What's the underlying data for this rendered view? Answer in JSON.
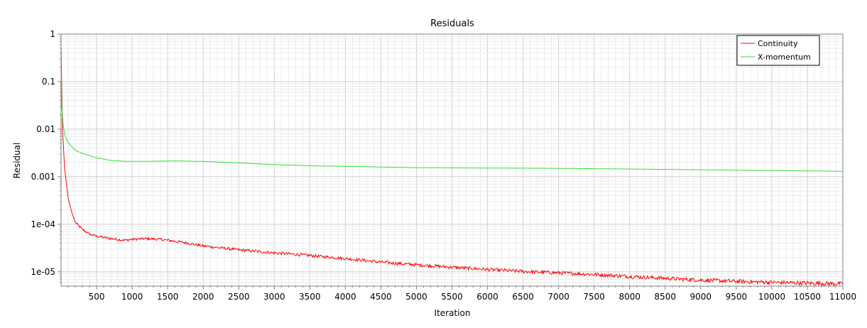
{
  "chart_data": {
    "type": "line",
    "title": "Residuals",
    "xlabel": "Iteration",
    "ylabel": "Residual",
    "xlim": [
      0,
      11000
    ],
    "ylim": [
      5e-06,
      1
    ],
    "yscale": "log",
    "grid": true,
    "legend_position": "top-right",
    "x_ticks": [
      500,
      1000,
      1500,
      2000,
      2500,
      3000,
      3500,
      4000,
      4500,
      5000,
      5500,
      6000,
      6500,
      7000,
      7500,
      8000,
      8500,
      9000,
      9500,
      10000,
      10500,
      11000
    ],
    "y_ticks": [
      {
        "value": 1,
        "label": "1"
      },
      {
        "value": 0.1,
        "label": "0.1"
      },
      {
        "value": 0.01,
        "label": "0.01"
      },
      {
        "value": 0.001,
        "label": "0.001"
      },
      {
        "value": 0.0001,
        "label": "1e-04"
      },
      {
        "value": 1e-05,
        "label": "1e-05"
      }
    ],
    "series": [
      {
        "name": "Continuity",
        "color": "#ff0000",
        "x": [
          1,
          20,
          50,
          100,
          150,
          200,
          300,
          400,
          500,
          700,
          900,
          1000,
          1200,
          1400,
          1500,
          1700,
          2000,
          2500,
          3000,
          3500,
          4000,
          4500,
          5000,
          5500,
          6000,
          6500,
          7000,
          7500,
          8000,
          8500,
          9000,
          9500,
          10000,
          10500,
          11000
        ],
        "y": [
          0.5,
          0.01,
          0.0015,
          0.00035,
          0.00018,
          0.00011,
          7.8e-05,
          6.2e-05,
          5.6e-05,
          5e-05,
          4.6e-05,
          4.8e-05,
          5e-05,
          4.8e-05,
          4.6e-05,
          4.2e-05,
          3.5e-05,
          2.9e-05,
          2.5e-05,
          2.2e-05,
          1.9e-05,
          1.6e-05,
          1.4e-05,
          1.25e-05,
          1.12e-05,
          1.02e-05,
          9.5e-06,
          8.8e-06,
          8e-06,
          7.3e-06,
          6.7e-06,
          6.3e-06,
          6e-06,
          5.8e-06,
          5.6e-06
        ],
        "noise": true
      },
      {
        "name": "X-momentum",
        "color": "#33dd33",
        "x": [
          1,
          10,
          30,
          60,
          100,
          200,
          300,
          500,
          700,
          900,
          1200,
          1600,
          2000,
          2500,
          3000,
          3500,
          4000,
          4500,
          5000,
          6000,
          7000,
          8000,
          9000,
          10000,
          11000
        ],
        "y": [
          0.5,
          0.03,
          0.012,
          0.007,
          0.0052,
          0.0036,
          0.0031,
          0.0025,
          0.0022,
          0.0021,
          0.0021,
          0.00215,
          0.0021,
          0.00195,
          0.0018,
          0.0017,
          0.00165,
          0.0016,
          0.00155,
          0.00152,
          0.0015,
          0.00145,
          0.0014,
          0.00135,
          0.0013
        ],
        "noise": false
      }
    ]
  }
}
